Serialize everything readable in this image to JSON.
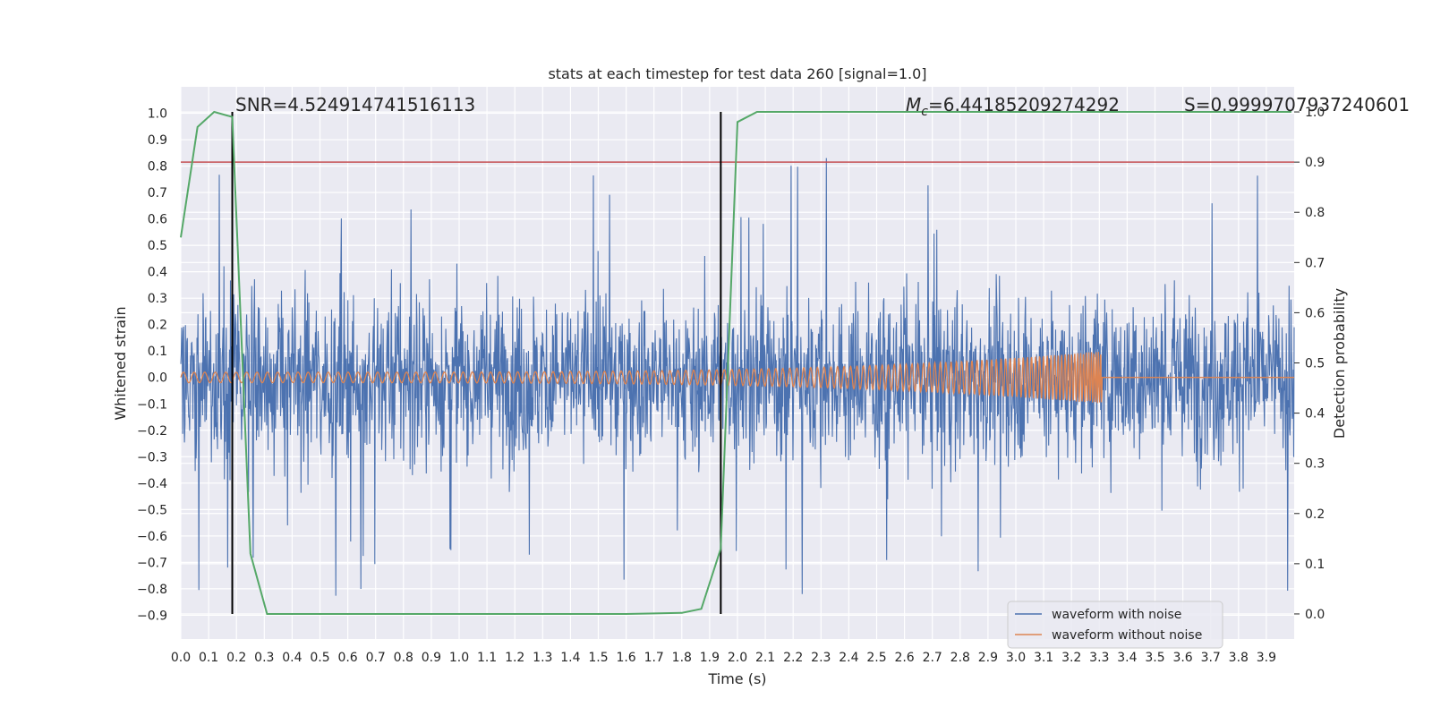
{
  "chart_data": {
    "type": "line",
    "title": "stats at each timestep for test data 260 [signal=1.0]",
    "xlabel": "Time (s)",
    "ylabel": "Whitened strain",
    "y2label": "Detection probability",
    "xlim": [
      0.0,
      4.0
    ],
    "ylim": [
      -0.99,
      1.1
    ],
    "y2lim": [
      -0.05,
      1.05
    ],
    "x_ticks": [
      "0.0",
      "0.1",
      "0.2",
      "0.3",
      "0.4",
      "0.5",
      "0.6",
      "0.7",
      "0.8",
      "0.9",
      "1.0",
      "1.1",
      "1.2",
      "1.3",
      "1.4",
      "1.5",
      "1.6",
      "1.7",
      "1.8",
      "1.9",
      "2.0",
      "2.1",
      "2.2",
      "2.3",
      "2.4",
      "2.5",
      "2.6",
      "2.7",
      "2.8",
      "2.9",
      "3.0",
      "3.1",
      "3.2",
      "3.3",
      "3.4",
      "3.5",
      "3.6",
      "3.7",
      "3.8",
      "3.9"
    ],
    "y_ticks": [
      "1.0",
      "0.9",
      "0.8",
      "0.7",
      "0.6",
      "0.5",
      "0.4",
      "0.3",
      "0.2",
      "0.1",
      "0.0",
      "−0.1",
      "−0.2",
      "−0.3",
      "−0.4",
      "−0.5",
      "−0.6",
      "−0.7",
      "−0.8",
      "−0.9"
    ],
    "y2_ticks": [
      "1.0",
      "0.9",
      "0.8",
      "0.7",
      "0.6",
      "0.5",
      "0.4",
      "0.3",
      "0.2",
      "0.1",
      "0.0"
    ],
    "grid": true,
    "legend_position": "lower-right",
    "annotations": {
      "snr": "SNR=4.524914741516113",
      "mc_symbol": "M",
      "mc_sub": "c",
      "mc_value": "=6.44185209274292",
      "s": "S=0.9999707937240601"
    },
    "threshold_y2": 0.9,
    "vertical_lines_x": [
      0.185,
      1.94
    ],
    "series": [
      {
        "name": "waveform with noise",
        "color": "#4c72b0",
        "kind": "noise",
        "amplitude_typical": 0.3,
        "amplitude_max": 1.0
      },
      {
        "name": "waveform without noise",
        "color": "#dd8452",
        "kind": "chirp",
        "amplitude_start": 0.02,
        "amplitude_end": 0.1,
        "merger_x": 3.31
      }
    ],
    "probability_curve": {
      "color": "#55a868",
      "x": [
        0.0,
        0.06,
        0.12,
        0.185,
        0.25,
        0.31,
        1.6,
        1.8,
        1.87,
        1.94,
        2.0,
        2.07,
        3.99
      ],
      "y": [
        0.75,
        0.97,
        1.0,
        0.99,
        0.12,
        0.0,
        0.0,
        0.002,
        0.01,
        0.13,
        0.98,
        1.0,
        1.0
      ]
    },
    "threshold_color": "#c44e52"
  }
}
